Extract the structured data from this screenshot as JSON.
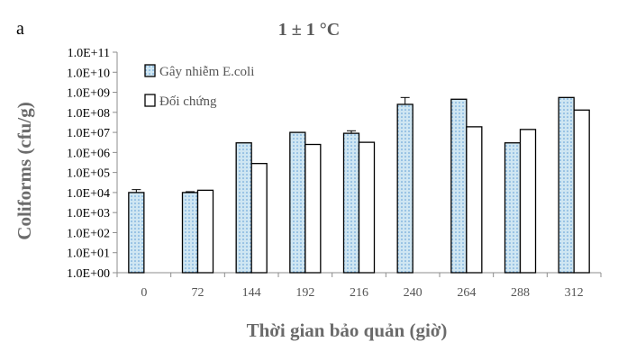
{
  "panel_label": "a",
  "colors": {
    "infected_fill": "#cfe6f2",
    "infected_pattern_dot": "#5b9bd5",
    "control_fill": "#ffffff",
    "bar_stroke": "#000000",
    "axis": "#8c8c8c"
  },
  "chart_data": {
    "type": "bar",
    "title": "1 ± 1 °C",
    "xlabel": "Thời gian bảo quản (giờ)",
    "ylabel": "Coliforms (cfu/g)",
    "y_scale": "log",
    "ylim": [
      1,
      100000000000
    ],
    "y_tick_labels": [
      "1.0E+00",
      "1.0E+01",
      "1.0E+02",
      "1.0E+03",
      "1.0E+04",
      "1.0E+05",
      "1.0E+06",
      "1.0E+07",
      "1.0E+08",
      "1.0E+09",
      "1.0E+10",
      "1.0E+11"
    ],
    "categories": [
      "0",
      "72",
      "144",
      "192",
      "216",
      "240",
      "264",
      "288",
      "312"
    ],
    "legend_position": "top-left",
    "grid": false,
    "series": [
      {
        "name": "Gây nhiễm E.coli",
        "pattern": "dotted-light-blue",
        "values": [
          10000,
          10000,
          3000000,
          10000000,
          9000000,
          250000000,
          450000000,
          3000000,
          550000000
        ],
        "errors_upper": [
          14000,
          11000,
          null,
          null,
          12000000,
          550000000,
          null,
          null,
          null
        ]
      },
      {
        "name": "Đối chứng",
        "pattern": "white",
        "values": [
          null,
          13000,
          280000,
          2500000,
          3200000,
          null,
          19000000,
          14000000,
          130000000
        ],
        "errors_upper": [
          null,
          null,
          null,
          null,
          null,
          null,
          null,
          null,
          null
        ]
      }
    ]
  }
}
